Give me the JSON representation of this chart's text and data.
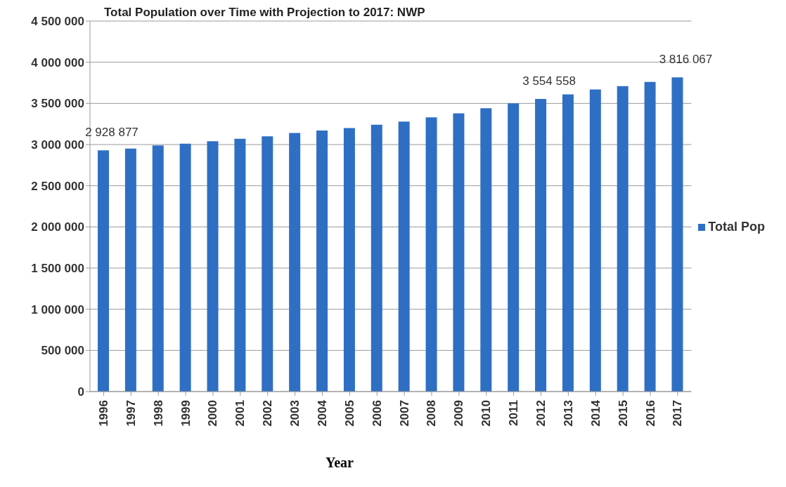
{
  "chart_data": {
    "type": "bar",
    "title": "Total Population over Time with Projection to 2017: NWP",
    "xlabel": "Year",
    "categories": [
      "1996",
      "1997",
      "1998",
      "1999",
      "2000",
      "2001",
      "2002",
      "2003",
      "2004",
      "2005",
      "2006",
      "2007",
      "2008",
      "2009",
      "2010",
      "2011",
      "2012",
      "2013",
      "2014",
      "2015",
      "2016",
      "2017"
    ],
    "series": [
      {
        "name": "Total Pop",
        "color": "#2e6fc4",
        "values": [
          2928877,
          2950000,
          2990000,
          3010000,
          3040000,
          3070000,
          3100000,
          3140000,
          3170000,
          3200000,
          3240000,
          3280000,
          3330000,
          3380000,
          3440000,
          3500000,
          3554558,
          3610000,
          3670000,
          3710000,
          3760000,
          3816067
        ],
        "value_labels": [
          "2 928 877",
          null,
          null,
          null,
          null,
          null,
          null,
          null,
          null,
          null,
          null,
          null,
          null,
          null,
          null,
          null,
          "3 554 558",
          null,
          null,
          null,
          null,
          "3 816 067"
        ]
      }
    ],
    "ylim": [
      0,
      4500000
    ],
    "yticks": [
      {
        "value": 0,
        "label": "0"
      },
      {
        "value": 500000,
        "label": "500 000"
      },
      {
        "value": 1000000,
        "label": "1 000 000"
      },
      {
        "value": 1500000,
        "label": "1 500 000"
      },
      {
        "value": 2000000,
        "label": "2 000 000"
      },
      {
        "value": 2500000,
        "label": "2 500 000"
      },
      {
        "value": 3000000,
        "label": "3 000 000"
      },
      {
        "value": 3500000,
        "label": "3 500 000"
      },
      {
        "value": 4000000,
        "label": "4 000 000"
      },
      {
        "value": 4500000,
        "label": "4 500 000"
      }
    ],
    "grid": "y",
    "legend": "right"
  }
}
